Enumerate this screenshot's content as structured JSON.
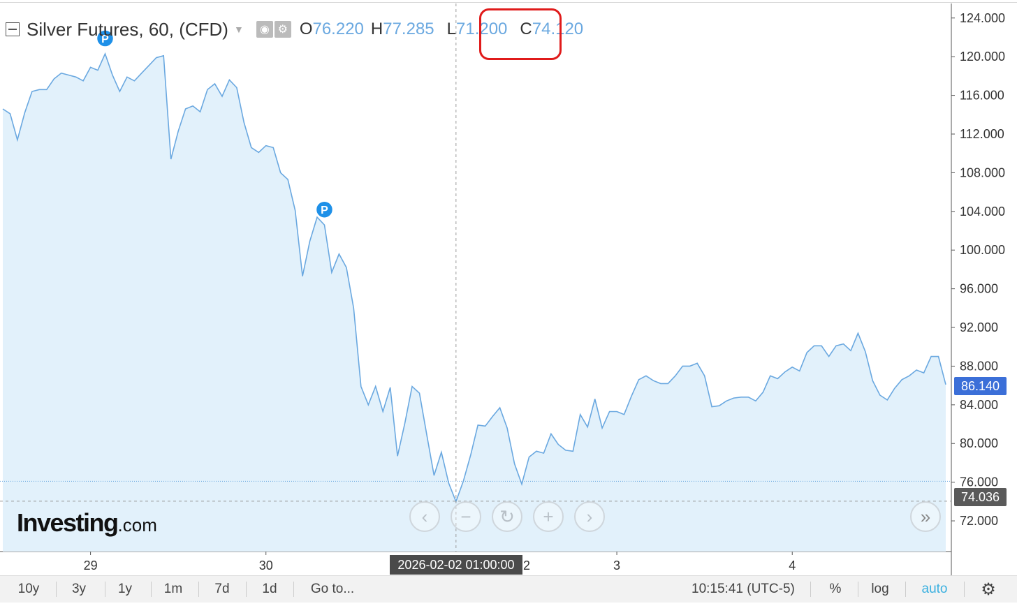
{
  "legend": {
    "symbol": "Silver Futures, 60, (CFD)",
    "open_key": "O",
    "open": "76.220",
    "high_key": "H",
    "high": "77.285",
    "low_key": "L",
    "low": "71.200",
    "close_key": "C",
    "close": "74.120",
    "eye_icon": "eye-icon",
    "settings_icon": "gear-icon",
    "highlight_color": "#e01b1b"
  },
  "chart_data": {
    "type": "area",
    "title": "Silver Futures, 60, (CFD)",
    "xlabel": "",
    "ylabel": "",
    "ylim": [
      68.9,
      125.5
    ],
    "yticks": [
      72,
      76,
      80,
      84,
      88,
      92,
      96,
      100,
      104,
      108,
      112,
      116,
      120,
      124
    ],
    "ytick_labels": [
      "72.000",
      "76.000",
      "80.000",
      "84.000",
      "88.000",
      "92.000",
      "96.000",
      "100.000",
      "104.000",
      "108.000",
      "112.000",
      "116.000",
      "120.000",
      "124.000"
    ],
    "xticks": [
      {
        "label": "29",
        "pos": 12
      },
      {
        "label": "30",
        "pos": 36
      },
      {
        "label": "3",
        "pos": 84
      },
      {
        "label": "4",
        "pos": 108
      }
    ],
    "x": [
      0,
      1,
      2,
      3,
      4,
      5,
      6,
      7,
      8,
      9,
      10,
      11,
      12,
      13,
      14,
      15,
      16,
      17,
      18,
      19,
      20,
      21,
      22,
      23,
      24,
      25,
      26,
      27,
      28,
      29,
      30,
      31,
      32,
      33,
      34,
      35,
      36,
      37,
      38,
      39,
      40,
      41,
      42,
      43,
      44,
      45,
      46,
      47,
      48,
      49,
      50,
      51,
      52,
      53,
      54,
      55,
      56,
      57,
      58,
      59,
      60,
      61,
      62,
      63,
      64,
      65,
      66,
      67,
      68,
      69,
      70,
      71,
      72,
      73,
      74,
      75,
      76,
      77,
      78,
      79,
      80,
      81,
      82,
      83,
      84,
      85,
      86,
      87,
      88,
      89,
      90,
      91,
      92,
      93,
      94,
      95,
      96,
      97,
      98,
      99,
      100,
      101,
      102,
      103,
      104,
      105,
      106,
      107,
      108,
      109,
      110,
      111,
      112,
      113,
      114,
      115,
      116,
      117,
      118,
      119,
      120,
      121,
      122,
      123,
      124,
      125,
      126,
      127,
      128,
      129
    ],
    "values": [
      114.6,
      114.1,
      111.4,
      114.2,
      116.4,
      116.6,
      116.6,
      117.7,
      118.3,
      118.1,
      117.9,
      117.5,
      118.9,
      118.6,
      120.3,
      118.1,
      116.4,
      117.9,
      117.5,
      118.3,
      119.1,
      119.9,
      120.1,
      109.4,
      112.3,
      114.6,
      114.9,
      114.3,
      116.6,
      117.2,
      115.9,
      117.6,
      116.8,
      113.2,
      110.6,
      110.1,
      110.8,
      110.6,
      108.0,
      107.3,
      104.1,
      97.3,
      100.9,
      103.4,
      102.6,
      97.7,
      99.6,
      98.2,
      94.0,
      85.9,
      84.0,
      85.9,
      83.3,
      85.8,
      78.7,
      82.1,
      85.9,
      85.2,
      80.9,
      76.7,
      79.1,
      75.9,
      74.0,
      76.1,
      78.8,
      81.9,
      81.8,
      82.8,
      83.7,
      81.6,
      77.9,
      75.8,
      78.6,
      79.2,
      79.0,
      81.0,
      79.9,
      79.3,
      79.2,
      83.0,
      81.7,
      84.6,
      81.6,
      83.3,
      83.3,
      83.0,
      84.9,
      86.6,
      87.0,
      86.5,
      86.2,
      86.2,
      87.0,
      88.0,
      88.0,
      88.3,
      87.0,
      83.8,
      83.9,
      84.4,
      84.7,
      84.8,
      84.8,
      84.4,
      85.3,
      87.0,
      86.7,
      87.4,
      87.9,
      87.5,
      89.4,
      90.1,
      90.1,
      89.0,
      90.1,
      90.3,
      89.6,
      91.4,
      89.5,
      86.5,
      85.0,
      84.5,
      85.7,
      86.6,
      87.0,
      87.6,
      87.3,
      89.0,
      89.0,
      86.1
    ],
    "series_color": "#6aa8e0",
    "fill_color": "#e2f1fb",
    "last_price": "86.140",
    "crosshair_price": "74.036",
    "crosshair_y": 74.036,
    "hline_y": 76.09,
    "crosshair_x": 62,
    "p_markers": [
      {
        "x": 14,
        "y": 120.3,
        "label": "P"
      },
      {
        "x": 44,
        "y": 102.6,
        "label": "P"
      }
    ],
    "grid": false
  },
  "crosshair_date": "2026-02-02 01:00:00",
  "branding": {
    "logo_main": "Investing",
    "logo_suffix": ".com"
  },
  "nav_buttons": [
    "‹",
    "−",
    "↻",
    "+",
    "›"
  ],
  "scroll_right": "»",
  "toolbar": {
    "ranges": [
      "10y",
      "3y",
      "1y",
      "1m",
      "7d",
      "1d"
    ],
    "goto": "Go to...",
    "clock": "10:15:41 (UTC-5)",
    "percent": "%",
    "log": "log",
    "auto": "auto",
    "settings_icon": "gear-icon"
  },
  "colors": {
    "last_tag": "#3b6fd8",
    "crosshair_tag": "#5a5a5a",
    "auto": "#3ab0e0"
  }
}
